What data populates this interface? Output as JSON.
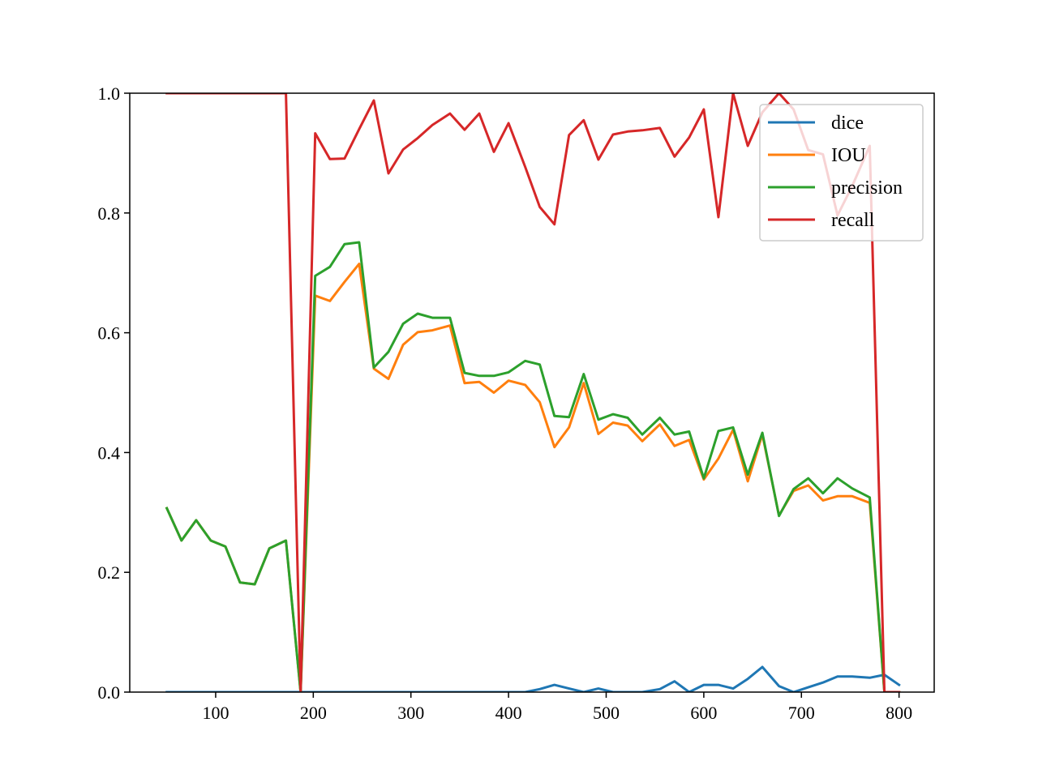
{
  "chart_data": {
    "type": "line",
    "title": "",
    "xlabel": "",
    "ylabel": "",
    "xlim": [
      12,
      836
    ],
    "ylim": [
      0,
      1
    ],
    "xticks": [
      100,
      200,
      300,
      400,
      500,
      600,
      700,
      800
    ],
    "xtick_labels": [
      "100",
      "200",
      "300",
      "400",
      "500",
      "600",
      "700",
      "800"
    ],
    "yticks": [
      0,
      0.2,
      0.4,
      0.6,
      0.8,
      1.0
    ],
    "ytick_labels": [
      "0.0",
      "0.2",
      "0.4",
      "0.6",
      "0.8",
      "1.0"
    ],
    "grid": false,
    "legend_position": "upper-right",
    "x": [
      50,
      65,
      80,
      95,
      110,
      125,
      140,
      155,
      172,
      187,
      202,
      217,
      232,
      247,
      262,
      277,
      292,
      307,
      322,
      340,
      355,
      370,
      385,
      400,
      417,
      432,
      447,
      462,
      477,
      492,
      507,
      522,
      537,
      555,
      570,
      585,
      600,
      615,
      630,
      645,
      660,
      677,
      692,
      707,
      722,
      737,
      752,
      770,
      785,
      800
    ],
    "series": [
      {
        "name": "dice",
        "color": "#1f77b4",
        "values": [
          0,
          0,
          0,
          0,
          0,
          0,
          0,
          0,
          0,
          0,
          0,
          0,
          0,
          0,
          0,
          0,
          0,
          0,
          0,
          0,
          0,
          0,
          0,
          0,
          0,
          0.005,
          0.012,
          0.006,
          0.0,
          0.006,
          0.0,
          0.0,
          0.0,
          0.005,
          0.018,
          0.0,
          0.012,
          0.012,
          0.006,
          0.022,
          0.042,
          0.01,
          0.0,
          0.008,
          0.016,
          0.026,
          0.026,
          0.024,
          0.029,
          0.012
        ]
      },
      {
        "name": "IOU",
        "color": "#ff7f0e",
        "values": [
          0.307,
          0.253,
          0.287,
          0.253,
          0.243,
          0.183,
          0.18,
          0.24,
          0.253,
          0.0,
          0.662,
          0.653,
          0.685,
          0.715,
          0.54,
          0.523,
          0.58,
          0.601,
          0.604,
          0.612,
          0.516,
          0.518,
          0.5,
          0.52,
          0.513,
          0.484,
          0.409,
          0.442,
          0.516,
          0.431,
          0.45,
          0.445,
          0.419,
          0.447,
          0.411,
          0.421,
          0.355,
          0.39,
          0.438,
          0.352,
          0.43,
          0.295,
          0.336,
          0.345,
          0.32,
          0.327,
          0.327,
          0.316,
          0.0,
          0.0
        ]
      },
      {
        "name": "precision",
        "color": "#2ca02c",
        "values": [
          0.307,
          0.253,
          0.287,
          0.253,
          0.243,
          0.183,
          0.18,
          0.24,
          0.253,
          0.0,
          0.695,
          0.71,
          0.748,
          0.751,
          0.542,
          0.568,
          0.615,
          0.632,
          0.625,
          0.625,
          0.533,
          0.528,
          0.528,
          0.534,
          0.553,
          0.547,
          0.461,
          0.459,
          0.531,
          0.455,
          0.464,
          0.458,
          0.43,
          0.458,
          0.43,
          0.435,
          0.357,
          0.436,
          0.442,
          0.363,
          0.433,
          0.294,
          0.339,
          0.357,
          0.332,
          0.357,
          0.34,
          0.325,
          0.0,
          0.0
        ]
      },
      {
        "name": "recall",
        "color": "#d62728",
        "values": [
          1.0,
          1.0,
          1.0,
          1.0,
          1.0,
          1.0,
          1.0,
          1.0,
          1.0,
          0.0,
          0.933,
          0.89,
          0.891,
          0.94,
          0.988,
          0.866,
          0.906,
          0.925,
          0.947,
          0.966,
          0.939,
          0.966,
          0.902,
          0.95,
          0.877,
          0.81,
          0.781,
          0.93,
          0.955,
          0.889,
          0.931,
          0.936,
          0.938,
          0.942,
          0.894,
          0.926,
          0.973,
          0.793,
          1.0,
          0.912,
          0.968,
          1.0,
          0.973,
          0.905,
          0.898,
          0.796,
          0.845,
          0.912,
          0.0,
          0.0
        ]
      }
    ]
  }
}
